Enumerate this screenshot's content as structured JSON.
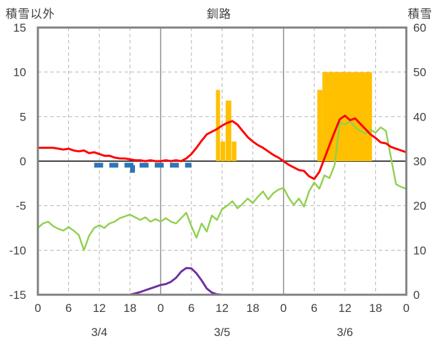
{
  "header": {
    "left_label": "積雪以外",
    "title": "釧路",
    "right_label": "積雪"
  },
  "colors": {
    "temperature": "#ff0000",
    "green_line": "#92d050",
    "snow_depth": "#7030a0",
    "snowfall_bars": "#ffc000",
    "blue_dashed": "#2e75b6",
    "grid": "#b3b3b3",
    "day_boundary": "#8c8c8c",
    "zero_line": "#404040",
    "border": "#808080",
    "text": "#3f3f3f"
  },
  "chart_data": {
    "type": "line",
    "title": "釧路",
    "left_axis": {
      "label": "積雪以外",
      "min": -15,
      "max": 15,
      "ticks": [
        15,
        10,
        5,
        0,
        -5,
        -10,
        -15
      ],
      "gridlines": [
        10,
        5,
        -5,
        -10
      ]
    },
    "right_axis": {
      "label": "積雪",
      "min": 0,
      "max": 60,
      "ticks": [
        60,
        50,
        40,
        30,
        20,
        10,
        0
      ]
    },
    "x_axis": {
      "total_hours": 72,
      "tick_step": 6,
      "tick_labels": [
        "0",
        "6",
        "12",
        "18",
        "0",
        "6",
        "12",
        "18",
        "0",
        "6",
        "12",
        "18",
        "0"
      ],
      "date_labels": [
        "3/4",
        "3/5",
        "3/6"
      ],
      "date_center_hours": [
        12,
        36,
        60
      ]
    },
    "series": [
      {
        "name": "snowfall-bars-orange",
        "type": "bar",
        "axis": "left",
        "color": "#ffc000",
        "bars": [
          {
            "hour": 34.8,
            "value": 8,
            "w": 0.8
          },
          {
            "hour": 35.7,
            "value": 2.2,
            "w": 0.9
          },
          {
            "hour": 36.7,
            "value": 6.8,
            "w": 1.1
          },
          {
            "hour": 37.9,
            "value": 2.2,
            "w": 0.9
          },
          {
            "hour": 54.6,
            "value": 8,
            "w": 1.0
          },
          {
            "hour": 55.6,
            "value": 10,
            "w": 9.7
          }
        ]
      },
      {
        "name": "blue-dashed-indicator",
        "type": "dashed-flat",
        "axis": "left",
        "color": "#2e75b6",
        "value": -0.45,
        "from": 11,
        "to": 30,
        "stroke_width": 7,
        "dash": "13,9",
        "tick": {
          "hour": 18.5,
          "value": -1.3
        }
      },
      {
        "name": "green-line",
        "type": "line",
        "axis": "left",
        "color": "#92d050",
        "stroke_width": 2.5,
        "values": [
          -7.5,
          -7.0,
          -6.8,
          -7.3,
          -7.6,
          -7.8,
          -7.4,
          -7.8,
          -8.3,
          -10.0,
          -8.4,
          -7.5,
          -7.2,
          -7.5,
          -7.0,
          -6.8,
          -6.4,
          -6.2,
          -6.0,
          -6.3,
          -6.6,
          -6.3,
          -6.8,
          -6.5,
          -6.8,
          -6.4,
          -6.8,
          -7.0,
          -6.4,
          -5.8,
          -7.3,
          -8.6,
          -7.0,
          -7.9,
          -6.1,
          -6.6,
          -5.4,
          -5.0,
          -4.5,
          -5.3,
          -4.8,
          -4.2,
          -4.7,
          -4.0,
          -3.4,
          -4.3,
          -3.6,
          -3.2,
          -3.0,
          -4.1,
          -4.9,
          -4.2,
          -5.1,
          -3.4,
          -2.4,
          -3.1,
          -1.6,
          -1.9,
          -0.4,
          4.4,
          4.1,
          4.5,
          3.8,
          3.4,
          3.1,
          3.5,
          3.2,
          3.8,
          3.4,
          0.4,
          -2.6,
          -2.9,
          -3.1
        ]
      },
      {
        "name": "snow-depth-purple",
        "type": "line",
        "axis": "right",
        "color": "#7030a0",
        "stroke_width": 3,
        "values": [
          0,
          0,
          0,
          0,
          0,
          0,
          0,
          0,
          0,
          0,
          0,
          0,
          0,
          0,
          0,
          0,
          0,
          0,
          0,
          0.3,
          0.6,
          1,
          1.4,
          1.8,
          2.2,
          2.4,
          2.9,
          3.8,
          5.2,
          6,
          5.9,
          4.8,
          3.2,
          1.4,
          0.5,
          0.1,
          0,
          0,
          0,
          0,
          0,
          0,
          0,
          0,
          0,
          0,
          0,
          0,
          0,
          0,
          0,
          0,
          0,
          0,
          0,
          0,
          0,
          0,
          0,
          0,
          0,
          0,
          0,
          0,
          0,
          0,
          0,
          0,
          0,
          0,
          0,
          0,
          0
        ]
      },
      {
        "name": "temperature-red",
        "type": "line",
        "axis": "left",
        "color": "#ff0000",
        "stroke_width": 3,
        "values": [
          1.5,
          1.5,
          1.5,
          1.5,
          1.4,
          1.3,
          1.4,
          1.2,
          1.1,
          1.2,
          0.9,
          1.0,
          0.8,
          0.6,
          0.6,
          0.4,
          0.3,
          0.3,
          0.2,
          0.1,
          0.1,
          0.0,
          0.1,
          0.0,
          0.0,
          0.1,
          0.0,
          0.1,
          0.0,
          0.3,
          0.8,
          1.5,
          2.3,
          3.0,
          3.3,
          3.6,
          4.0,
          4.3,
          4.5,
          4.1,
          3.4,
          2.7,
          2.2,
          1.8,
          1.5,
          1.1,
          0.7,
          0.4,
          0.0,
          -0.4,
          -0.7,
          -1.0,
          -1.1,
          -1.7,
          -2.0,
          -1.2,
          0.3,
          1.8,
          3.3,
          4.7,
          5.1,
          4.6,
          4.8,
          4.2,
          3.6,
          3.0,
          2.6,
          2.1,
          2.0,
          1.6,
          1.4,
          1.2,
          1.0
        ]
      }
    ]
  }
}
